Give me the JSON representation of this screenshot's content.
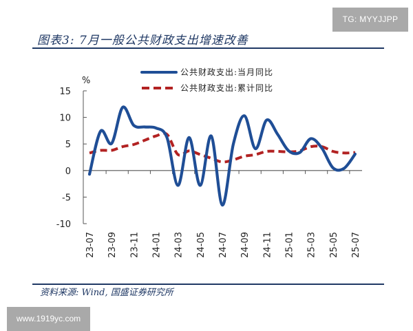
{
  "watermarks": {
    "top": "TG: MYYJJPP",
    "bottom": "www.1919yc.com"
  },
  "figure": {
    "title": "图表3:  7月一般公共财政支出增速改善",
    "source": "资料来源:  Wind, 国盛证券研究所"
  },
  "chart_data": {
    "type": "line",
    "title": "7月一般公共财政支出增速改善",
    "xlabel": "",
    "ylabel": "%",
    "ylim": [
      -10,
      15
    ],
    "yticks": [
      15,
      10,
      5,
      0,
      -5,
      -10
    ],
    "grid": false,
    "legend_position": "top-center",
    "x": [
      "23-07",
      "23-08",
      "23-09",
      "23-10",
      "23-11",
      "23-12",
      "24-01",
      "24-02",
      "24-03",
      "24-04",
      "24-05",
      "24-06",
      "24-07",
      "24-08",
      "24-09",
      "24-10",
      "24-11",
      "24-12",
      "25-01",
      "25-02",
      "25-03",
      "25-04",
      "25-05",
      "25-06",
      "25-07"
    ],
    "xtick_labels": [
      "23-07",
      "23-09",
      "23-11",
      "24-01",
      "24-03",
      "24-05",
      "24-07",
      "24-09",
      "24-11",
      "25-01",
      "25-03",
      "25-05",
      "25-07"
    ],
    "series": [
      {
        "name": "公共财政支出:当月同比",
        "style": "solid",
        "color": "#1f4e96",
        "values": [
          -0.7,
          7.4,
          5.1,
          11.9,
          8.5,
          8.2,
          8.0,
          6.2,
          -2.8,
          6.2,
          -2.8,
          6.5,
          -6.5,
          5.0,
          10.3,
          4.1,
          9.5,
          6.8,
          3.7,
          3.4,
          6.0,
          4.2,
          0.5,
          0.4,
          3.1
        ]
      },
      {
        "name": "公共财政支出:累计同比",
        "style": "dashed",
        "color": "#b22222",
        "values": [
          3.3,
          3.8,
          3.8,
          4.5,
          4.9,
          5.7,
          6.5,
          6.8,
          3.0,
          3.7,
          3.0,
          2.3,
          1.6,
          2.0,
          2.7,
          3.0,
          3.6,
          3.6,
          3.5,
          3.7,
          4.5,
          4.5,
          3.6,
          3.3,
          3.4
        ]
      }
    ]
  }
}
